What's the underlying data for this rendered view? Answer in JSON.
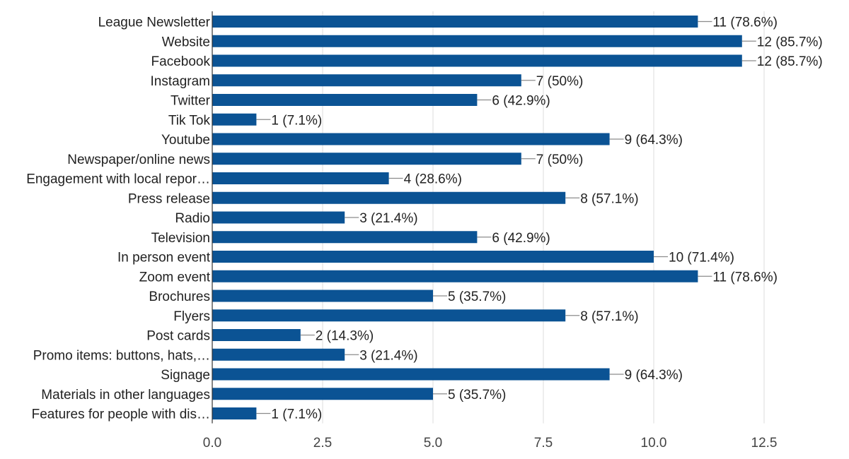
{
  "chart_data": {
    "type": "bar",
    "orientation": "horizontal",
    "title": "",
    "xlabel": "",
    "ylabel": "",
    "xlim": [
      0,
      12.5
    ],
    "x_ticks": [
      0.0,
      2.5,
      5.0,
      7.5,
      10.0,
      12.5
    ],
    "x_tick_labels": [
      "0.0",
      "2.5",
      "5.0",
      "7.5",
      "10.0",
      "12.5"
    ],
    "grid": true,
    "legend": "none",
    "bar_color": "#0b5394",
    "categories": [
      "League Newsletter",
      "Website",
      "Facebook",
      "Instagram",
      "Twitter",
      "Tik Tok",
      "Youtube",
      "Newspaper/online news",
      "Engagement with local repor…",
      "Press release",
      "Radio",
      "Television",
      "In person event",
      "Zoom event",
      "Brochures",
      "Flyers",
      "Post cards",
      "Promo items: buttons, hats,…",
      "Signage",
      "Materials in other languages",
      "Features for people with dis…"
    ],
    "values": [
      11,
      12,
      12,
      7,
      6,
      1,
      9,
      7,
      4,
      8,
      3,
      6,
      10,
      11,
      5,
      8,
      2,
      3,
      9,
      5,
      1
    ],
    "value_labels": [
      "11 (78.6%)",
      "12 (85.7%)",
      "12 (85.7%)",
      "7 (50%)",
      "6 (42.9%)",
      "1 (7.1%)",
      "9 (64.3%)",
      "7 (50%)",
      "4 (28.6%)",
      "8 (57.1%)",
      "3 (21.4%)",
      "6 (42.9%)",
      "10 (71.4%)",
      "11 (78.6%)",
      "5 (35.7%)",
      "8 (57.1%)",
      "2 (14.3%)",
      "3 (21.4%)",
      "9 (64.3%)",
      "5 (35.7%)",
      "1 (7.1%)"
    ]
  }
}
